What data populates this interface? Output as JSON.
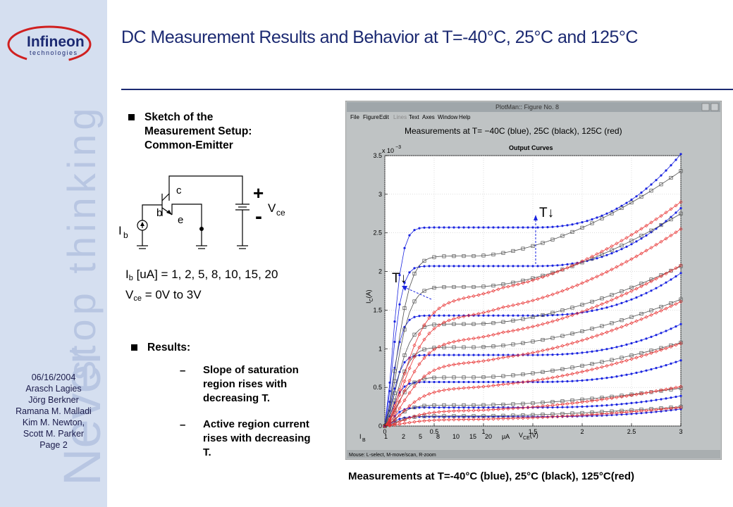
{
  "sidebar": {
    "logo_brand": "Infineon",
    "logo_sub": "technologies",
    "watermark_line1": "Never",
    "watermark_line2": "stop thinking",
    "footer_lines": [
      "06/16/2004",
      "Arasch Lagies",
      "Jörg Berkner",
      "Ramana M. Malladi",
      "Kim M. Newton,",
      "Scott M. Parker",
      "Page 2"
    ]
  },
  "title": "DC Measurement Results and Behavior at T=-40°C, 25°C and 125°C",
  "setup": {
    "heading_lines": [
      "Sketch of the",
      "Measurement Setup:",
      "Common-Emitter"
    ],
    "diagram": {
      "label_c": "c",
      "label_b": "b",
      "label_e": "e",
      "label_ib": "I",
      "label_ib_sub": "b",
      "label_plus": "+",
      "label_minus": "-",
      "label_vce": "V",
      "label_vce_sub": "ce"
    },
    "param1": {
      "sym": "I",
      "sub": "b",
      "rest": " [uA] = 1, 2, 5, 8, 10, 15, 20"
    },
    "param2": {
      "sym": "V",
      "sub": "ce",
      "rest": " = 0V to 3V"
    }
  },
  "results": {
    "heading": "Results:",
    "dash": "–",
    "items": [
      {
        "lines": [
          "Slope of saturation",
          "region rises with",
          "decreasing T."
        ]
      },
      {
        "lines": [
          "Active region current",
          "rises with decreasing",
          "T."
        ]
      }
    ]
  },
  "window": {
    "titlebar": "PlotMan:: Figure No. 8",
    "menu": [
      "File",
      "Figure",
      "Edit",
      "Lines",
      "Text",
      "Axes",
      "Window",
      "Help"
    ],
    "plot_title": "Measurements at T= −40C (blue), 25C (black), 125C (red)",
    "status_bar": "Mouse: L-select, M-move/scan, R-zoom",
    "ib_legend": {
      "label": "I",
      "label_sub": "B",
      "values": [
        "1",
        "2",
        "5",
        "8",
        "10",
        "15",
        "20"
      ],
      "unit": "μA"
    },
    "annotation_1": "T↓",
    "annotation_2": "T↓",
    "colors": {
      "blue": "#1a24e0",
      "black": "#505050",
      "red": "#e83030",
      "window_bg": "#bfc3c4",
      "plot_bg": "#ffffff"
    }
  },
  "chart_data": {
    "type": "line",
    "title": "Output Curves",
    "xlabel": "V",
    "xlabel_sub": "CE",
    "xlabel_unit": "(V)",
    "ylabel": "I",
    "ylabel_sub": "C",
    "ylabel_unit": "(A)",
    "xlim": [
      0,
      3
    ],
    "ylim": [
      0,
      0.0035
    ],
    "y_scale_note": "x 10",
    "y_scale_exp": "−3",
    "xticks": [
      "0",
      "0.5",
      "1",
      "1.5",
      "2",
      "2.5",
      "3"
    ],
    "yticks": [
      "0",
      "0.5",
      "1",
      "1.5",
      "2",
      "2.5",
      "3",
      "3.5"
    ],
    "ib_uA": [
      1,
      2,
      5,
      8,
      10,
      15,
      20
    ],
    "series": [
      {
        "name": "-40C",
        "color": "#1a24e0",
        "marker": "dot",
        "sat_mA": [
          0.12,
          0.24,
          0.57,
          0.92,
          1.43,
          2.07,
          2.57
        ],
        "rise_mA": [
          0.1,
          0.15,
          0.28,
          0.4,
          0.55,
          0.75,
          0.95
        ]
      },
      {
        "name": "25C",
        "color": "#505050",
        "marker": "square",
        "sat_mA": [
          0.13,
          0.27,
          0.63,
          1.02,
          1.32,
          1.8,
          2.2
        ],
        "rise_mA": [
          0.12,
          0.22,
          0.45,
          0.62,
          0.75,
          0.95,
          1.1
        ]
      },
      {
        "name": "125C",
        "color": "#e83030",
        "marker": "diamond",
        "sat_mA": [
          0.09,
          0.21,
          0.52,
          0.86,
          1.18,
          1.5,
          1.75
        ],
        "rise_mA": [
          0.15,
          0.3,
          0.55,
          0.75,
          0.9,
          1.05,
          1.15
        ]
      }
    ]
  },
  "caption": "Measurements at T=-40°C (blue), 25°C (black), 125°C(red)"
}
